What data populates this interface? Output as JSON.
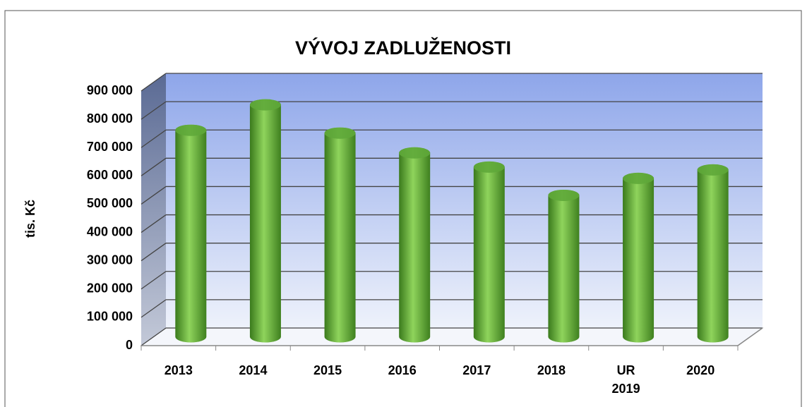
{
  "chart_data": {
    "type": "bar3d",
    "title": "VÝVOJ ZADLUŽENOSTI",
    "y_label": "tis. Kč",
    "categories": [
      "2013",
      "2014",
      "2015",
      "2016",
      "2017",
      "2018",
      "UR 2019",
      "2020"
    ],
    "values": [
      730000,
      820000,
      720000,
      650000,
      600000,
      500000,
      560000,
      590000
    ],
    "color": "#5fa83a",
    "ylim": [
      0,
      900000
    ],
    "yticks": [
      0,
      {
        "value": 100000,
        "label": "100 000"
      },
      {
        "value": 200000,
        "label": "200 000"
      },
      {
        "value": 300000,
        "label": "300 000"
      },
      {
        "value": 400000,
        "label": "400 000"
      },
      {
        "value": 500000,
        "label": "500 000"
      },
      {
        "value": 600000,
        "label": "600 000"
      },
      {
        "value": 700000,
        "label": "700 000"
      },
      {
        "value": 800000,
        "label": "800 000"
      },
      {
        "value": 900000,
        "label": "900 000"
      }
    ],
    "grid": true
  }
}
